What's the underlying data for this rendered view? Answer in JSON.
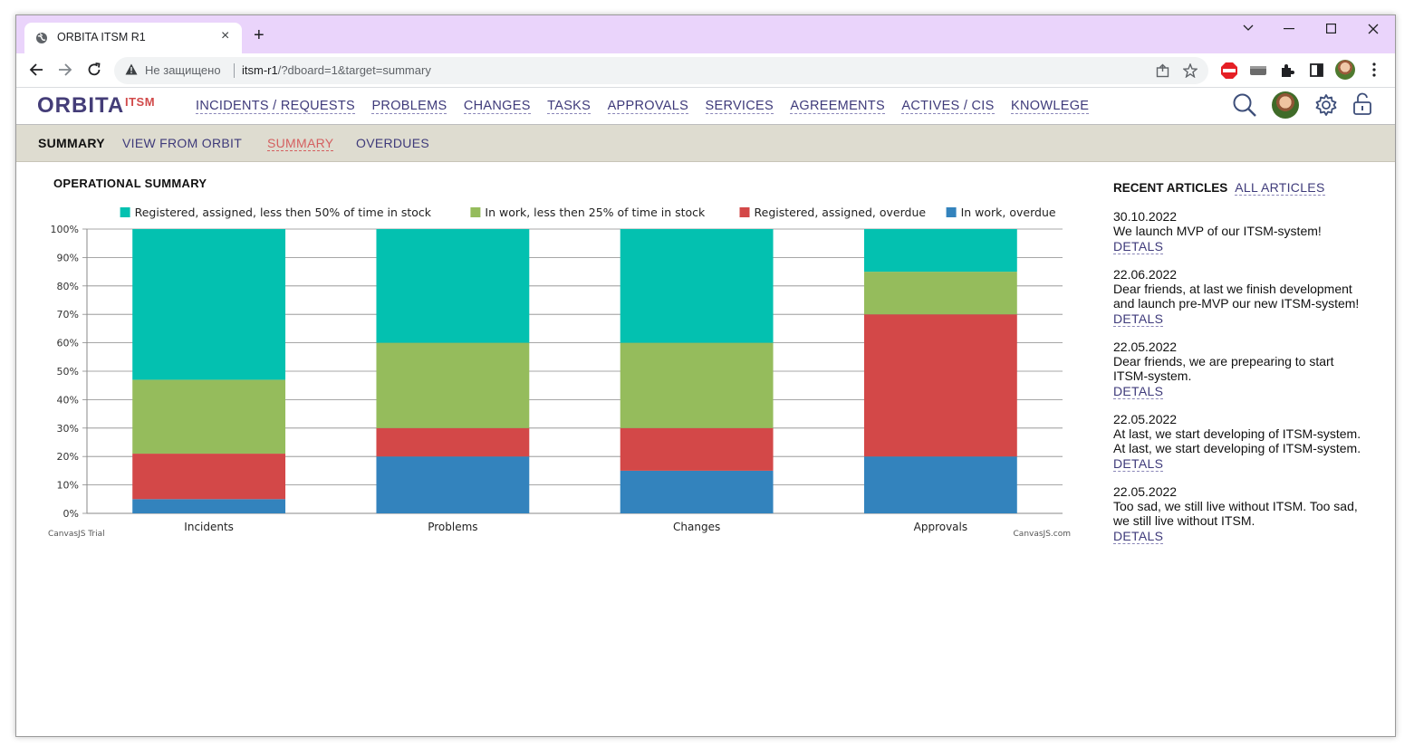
{
  "browser": {
    "tab_title": "ORBITA ITSM R1",
    "security_label": "Не защищено",
    "url_host": "itsm-r1",
    "url_path": "/?dboard=1&target=summary"
  },
  "app": {
    "logo": "ORBITA",
    "logo_sub": "ITSM",
    "nav": [
      {
        "label": "INCIDENTS / REQUESTS"
      },
      {
        "label": "PROBLEMS"
      },
      {
        "label": "CHANGES"
      },
      {
        "label": "TASKS"
      },
      {
        "label": "APPROVALS"
      },
      {
        "label": "SERVICES"
      },
      {
        "label": "AGREEMENTS"
      },
      {
        "label": "ACTIVES / CIS"
      },
      {
        "label": "KNOWLEGE"
      }
    ]
  },
  "subnav": {
    "current": "SUMMARY",
    "items": [
      {
        "label": "VIEW FROM ORBIT"
      },
      {
        "label": "SUMMARY"
      },
      {
        "label": "OVERDUES"
      }
    ]
  },
  "summary": {
    "title": "OPERATIONAL SUMMARY"
  },
  "chart_data": {
    "type": "bar",
    "stacked": "100%",
    "categories": [
      "Incidents",
      "Problems",
      "Changes",
      "Approvals"
    ],
    "series": [
      {
        "name": "In work, overdue",
        "color": "#3383bd",
        "values": [
          5,
          20,
          15,
          20
        ]
      },
      {
        "name": "Registered, assigned, overdue",
        "color": "#d34848",
        "values": [
          16,
          10,
          15,
          50
        ]
      },
      {
        "name": "In work, less then 25% of time in stock",
        "color": "#95bc5c",
        "values": [
          26,
          30,
          30,
          15
        ]
      },
      {
        "name": "Registered, assigned, less then 50% of time in stock",
        "color": "#03c1b0",
        "values": [
          53,
          40,
          40,
          15
        ]
      }
    ],
    "legend_order": [
      3,
      2,
      1,
      0
    ],
    "yticks": [
      "0%",
      "10%",
      "20%",
      "30%",
      "40%",
      "50%",
      "60%",
      "70%",
      "80%",
      "90%",
      "100%"
    ],
    "ylim": [
      0,
      100
    ],
    "legend_position": "top",
    "grid": true,
    "watermark_left": "CanvasJS Trial",
    "watermark_right": "CanvasJS.com"
  },
  "articles": {
    "title": "RECENT ARTICLES",
    "all_label": "ALL ARTICLES",
    "details_label": "DETALS",
    "items": [
      {
        "date": "30.10.2022",
        "text": "We launch MVP of our ITSM-system!"
      },
      {
        "date": "22.06.2022",
        "text": "Dear friends, at last we finish development and launch pre-MVP our new ITSM-system!"
      },
      {
        "date": "22.05.2022",
        "text": "Dear friends, we are prepearing to start ITSM-system."
      },
      {
        "date": "22.05.2022",
        "text": "At last, we start developing of ITSM-system. At last, we start developing of ITSM-system."
      },
      {
        "date": "22.05.2022",
        "text": "Too sad, we still live without ITSM. Too sad, we still live without ITSM."
      }
    ]
  }
}
